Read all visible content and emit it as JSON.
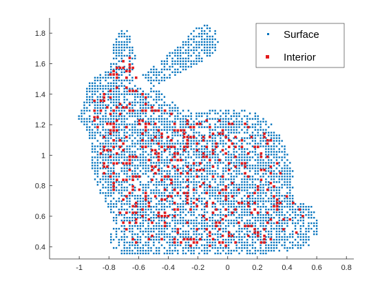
{
  "chart_data": {
    "type": "scatter",
    "title": "",
    "xlabel": "",
    "ylabel": "",
    "xlim": [
      -1.2,
      0.85
    ],
    "ylim": [
      0.32,
      1.9
    ],
    "grid": false,
    "legend_placement": "top-right",
    "x_ticks": [
      -1,
      -0.8,
      -0.6,
      -0.4,
      -0.2,
      0,
      0.2,
      0.4,
      0.6,
      0.8
    ],
    "x_tick_labels": [
      "-1",
      "-0.8",
      "-0.6",
      "-0.4",
      "-0.2",
      "0",
      "0.2",
      "0.4",
      "0.6",
      "0.8"
    ],
    "y_ticks": [
      0.4,
      0.6,
      0.8,
      1.0,
      1.2,
      1.4,
      1.6,
      1.8
    ],
    "y_tick_labels": [
      "0.4",
      "0.6",
      "0.8",
      "1",
      "1.2",
      "1.4",
      "1.6",
      "1.8"
    ],
    "series": [
      {
        "name": "Surface",
        "color": "#0072BD",
        "marker": "point",
        "outline": [
          [
            -0.76,
            0.36
          ],
          [
            -0.6,
            0.34
          ],
          [
            -0.4,
            0.34
          ],
          [
            -0.2,
            0.34
          ],
          [
            0.0,
            0.34
          ],
          [
            0.2,
            0.35
          ],
          [
            0.4,
            0.37
          ],
          [
            0.55,
            0.4
          ],
          [
            0.6,
            0.48
          ],
          [
            0.61,
            0.58
          ],
          [
            0.57,
            0.66
          ],
          [
            0.5,
            0.7
          ],
          [
            0.44,
            0.72
          ],
          [
            0.45,
            0.8
          ],
          [
            0.44,
            0.9
          ],
          [
            0.41,
            1.0
          ],
          [
            0.37,
            1.1
          ],
          [
            0.3,
            1.2
          ],
          [
            0.2,
            1.27
          ],
          [
            0.1,
            1.3
          ],
          [
            0.0,
            1.31
          ],
          [
            -0.1,
            1.3
          ],
          [
            -0.2,
            1.28
          ],
          [
            -0.3,
            1.3
          ],
          [
            -0.4,
            1.37
          ],
          [
            -0.5,
            1.45
          ],
          [
            -0.58,
            1.52
          ],
          [
            -0.48,
            1.6
          ],
          [
            -0.36,
            1.7
          ],
          [
            -0.25,
            1.8
          ],
          [
            -0.18,
            1.86
          ],
          [
            -0.12,
            1.86
          ],
          [
            -0.07,
            1.8
          ],
          [
            -0.06,
            1.72
          ],
          [
            -0.1,
            1.66
          ],
          [
            -0.2,
            1.6
          ],
          [
            -0.35,
            1.52
          ],
          [
            -0.45,
            1.47
          ],
          [
            -0.56,
            1.43
          ],
          [
            -0.62,
            1.45
          ],
          [
            -0.64,
            1.55
          ],
          [
            -0.62,
            1.65
          ],
          [
            -0.64,
            1.75
          ],
          [
            -0.68,
            1.82
          ],
          [
            -0.74,
            1.81
          ],
          [
            -0.77,
            1.72
          ],
          [
            -0.78,
            1.62
          ],
          [
            -0.8,
            1.56
          ],
          [
            -0.86,
            1.54
          ],
          [
            -0.92,
            1.5
          ],
          [
            -0.96,
            1.45
          ],
          [
            -0.96,
            1.38
          ],
          [
            -0.98,
            1.3
          ],
          [
            -1.02,
            1.25
          ],
          [
            -0.98,
            1.2
          ],
          [
            -0.94,
            1.15
          ],
          [
            -0.92,
            1.05
          ],
          [
            -0.92,
            0.95
          ],
          [
            -0.9,
            0.85
          ],
          [
            -0.86,
            0.75
          ],
          [
            -0.8,
            0.65
          ],
          [
            -0.76,
            0.55
          ],
          [
            -0.8,
            0.45
          ],
          [
            -0.78,
            0.38
          ]
        ]
      },
      {
        "name": "Interior",
        "color": "#D95319",
        "marker": "square",
        "outline": [
          [
            -0.7,
            0.42
          ],
          [
            -0.4,
            0.4
          ],
          [
            0.0,
            0.4
          ],
          [
            0.3,
            0.42
          ],
          [
            0.52,
            0.5
          ],
          [
            0.53,
            0.62
          ],
          [
            0.38,
            0.75
          ],
          [
            0.36,
            0.95
          ],
          [
            0.3,
            1.1
          ],
          [
            0.15,
            1.22
          ],
          [
            -0.05,
            1.24
          ],
          [
            -0.25,
            1.22
          ],
          [
            -0.45,
            1.32
          ],
          [
            -0.58,
            1.42
          ],
          [
            -0.68,
            1.7
          ],
          [
            -0.72,
            1.6
          ],
          [
            -0.86,
            1.46
          ],
          [
            -0.92,
            1.3
          ],
          [
            -0.86,
            1.1
          ],
          [
            -0.85,
            0.9
          ],
          [
            -0.76,
            0.7
          ],
          [
            -0.7,
            0.5
          ]
        ]
      }
    ]
  }
}
